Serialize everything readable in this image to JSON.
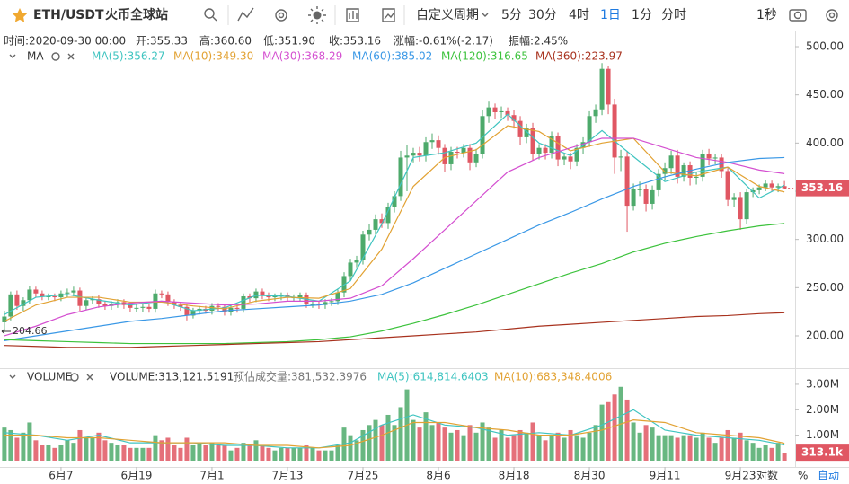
{
  "toolbar": {
    "symbol": "ETH/USDT",
    "exchange": "火币全球站",
    "custom_period": "自定义周期",
    "periods": [
      "5分",
      "30分",
      "4时",
      "1日",
      "1分",
      "分时"
    ],
    "active_period": "1日",
    "interval": "1秒"
  },
  "info": [
    "时间:2020-09-30 00:00",
    "开:355.33",
    "高:360.60",
    "低:351.90",
    "收:353.16",
    "涨幅:-0.61%(-2.17)",
    "振幅:2.45%"
  ],
  "ma_title": "MA",
  "volume_title": "VOLUME",
  "volume_info": [
    "VOLUME:313,121.5191",
    "预估成交量:381,532.3976"
  ],
  "footer": {
    "percent": "%",
    "log": "对数",
    "auto": "自动"
  },
  "chart_data": {
    "type": "candlestick",
    "xlim": [
      -0.7,
      125.7
    ],
    "xticks": [
      {
        "value": 9,
        "label": "6月7"
      },
      {
        "value": 21,
        "label": "6月19"
      },
      {
        "value": 33,
        "label": "7月1"
      },
      {
        "value": 45,
        "label": "7月13"
      },
      {
        "value": 57,
        "label": "7月25"
      },
      {
        "value": 69,
        "label": "8月6"
      },
      {
        "value": 81,
        "label": "8月18"
      },
      {
        "value": 93,
        "label": "8月30"
      },
      {
        "value": 105,
        "label": "9月11"
      },
      {
        "value": 117,
        "label": "9月23"
      }
    ],
    "ylim": [
      168.3,
      511.2
    ],
    "yticks": [
      {
        "value": 200,
        "label": "200.00"
      },
      {
        "value": 250,
        "label": "250.00"
      },
      {
        "value": 300,
        "label": "300.00"
      },
      {
        "value": 350,
        "label": "350.00"
      },
      {
        "value": 400,
        "label": "400.00"
      },
      {
        "value": 450,
        "label": "450.00"
      },
      {
        "value": 500,
        "label": "500.00"
      }
    ],
    "up_color": "#4daa6b",
    "down_color": "#e05763",
    "open": [
      214,
      220,
      243,
      231,
      237,
      248,
      244,
      241,
      241,
      240,
      244,
      245,
      247,
      231,
      237,
      238,
      233,
      231,
      233,
      235,
      232,
      229,
      229,
      230,
      228,
      244,
      243,
      235,
      232,
      230,
      221,
      226,
      228,
      226,
      231,
      230,
      225,
      229,
      228,
      241,
      239,
      246,
      242,
      240,
      241,
      242,
      240,
      240,
      242,
      233,
      233,
      232,
      235,
      236,
      245,
      262,
      276,
      279,
      305,
      310,
      321,
      317,
      334,
      345,
      385,
      387,
      390,
      387,
      401,
      403,
      395,
      378,
      391,
      390,
      395,
      380,
      389,
      428,
      437,
      432,
      433,
      429,
      423,
      406,
      416,
      389,
      395,
      390,
      407,
      383,
      386,
      381,
      395,
      401,
      428,
      435,
      477,
      440,
      385,
      386,
      335,
      352,
      352,
      337,
      351,
      368,
      374,
      387,
      365,
      377,
      364,
      365,
      389,
      384,
      385,
      371,
      341,
      344,
      321,
      349,
      351,
      354,
      358,
      354,
      355.33
    ],
    "high": [
      226,
      246,
      247,
      240,
      252,
      251,
      247,
      244,
      244,
      247,
      249,
      251,
      250,
      240,
      241,
      242,
      236,
      236,
      238,
      238,
      235,
      233,
      233,
      233,
      248,
      247,
      246,
      238,
      235,
      233,
      229,
      231,
      231,
      234,
      234,
      233,
      232,
      232,
      244,
      244,
      249,
      249,
      245,
      244,
      245,
      245,
      243,
      245,
      245,
      236,
      236,
      238,
      239,
      248,
      266,
      280,
      283,
      309,
      316,
      326,
      327,
      338,
      350,
      392,
      398,
      395,
      396,
      406,
      410,
      408,
      399,
      396,
      396,
      399,
      399,
      394,
      434,
      443,
      441,
      438,
      437,
      434,
      428,
      420,
      421,
      399,
      399,
      412,
      411,
      390,
      390,
      399,
      406,
      433,
      440,
      483,
      480,
      446,
      393,
      392,
      358,
      360,
      357,
      356,
      373,
      380,
      392,
      393,
      380,
      381,
      370,
      393,
      394,
      389,
      389,
      374,
      348,
      349,
      352,
      354,
      357,
      362,
      361,
      358,
      360.6
    ],
    "low": [
      204.66,
      216,
      227,
      226,
      233,
      240,
      237,
      237,
      236,
      236,
      240,
      241,
      226,
      227,
      233,
      229,
      227,
      227,
      229,
      228,
      225,
      225,
      225,
      224,
      224,
      239,
      231,
      228,
      226,
      216,
      218,
      222,
      223,
      222,
      226,
      221,
      221,
      224,
      224,
      235,
      235,
      238,
      236,
      236,
      237,
      236,
      236,
      236,
      229,
      229,
      228,
      228,
      231,
      232,
      240,
      257,
      271,
      274,
      299,
      305,
      312,
      311,
      328,
      340,
      350,
      380,
      381,
      381,
      394,
      388,
      370,
      372,
      384,
      385,
      372,
      375,
      384,
      421,
      425,
      426,
      423,
      415,
      398,
      400,
      382,
      383,
      383,
      384,
      376,
      377,
      373,
      376,
      389,
      396,
      421,
      429,
      430,
      368,
      371,
      308,
      330,
      345,
      329,
      331,
      345,
      361,
      368,
      358,
      360,
      356,
      357,
      360,
      377,
      378,
      364,
      335,
      334,
      310,
      316,
      344,
      347,
      350,
      350,
      349,
      351.9
    ],
    "close": [
      220,
      243,
      231,
      237,
      248,
      244,
      241,
      241,
      240,
      244,
      245,
      247,
      231,
      237,
      238,
      233,
      231,
      233,
      235,
      232,
      229,
      229,
      230,
      228,
      244,
      243,
      235,
      232,
      230,
      221,
      226,
      228,
      226,
      231,
      230,
      225,
      229,
      228,
      241,
      239,
      246,
      242,
      240,
      241,
      242,
      240,
      240,
      242,
      233,
      233,
      232,
      235,
      236,
      245,
      262,
      276,
      279,
      305,
      310,
      321,
      317,
      334,
      345,
      385,
      387,
      390,
      387,
      401,
      403,
      395,
      378,
      391,
      390,
      395,
      380,
      389,
      428,
      437,
      432,
      433,
      429,
      423,
      406,
      416,
      389,
      395,
      390,
      407,
      383,
      386,
      381,
      395,
      401,
      428,
      435,
      477,
      440,
      385,
      386,
      335,
      352,
      352,
      337,
      351,
      368,
      374,
      387,
      365,
      377,
      364,
      365,
      389,
      384,
      385,
      371,
      341,
      344,
      321,
      349,
      351,
      354,
      358,
      354,
      355.33,
      353.16
    ],
    "ma_x": [
      0,
      5,
      10,
      15,
      20,
      25,
      30,
      35,
      40,
      45,
      50,
      55,
      60,
      65,
      70,
      75,
      80,
      85,
      90,
      95,
      100,
      105,
      110,
      115,
      120,
      124
    ],
    "ma_series": [
      {
        "name": "MA(5):356.27",
        "color": "#3fc4c0",
        "values": [
          222,
          240,
          243,
          237,
          232,
          236,
          226,
          229,
          242,
          241,
          236,
          257,
          316,
          385,
          390,
          400,
          430,
          400,
          387,
          413,
          386,
          360,
          370,
          375,
          343,
          356.27
        ]
      },
      {
        "name": "MA(10):349.30",
        "color": "#e2a233",
        "values": [
          215,
          232,
          240,
          240,
          235,
          235,
          231,
          228,
          236,
          240,
          239,
          249,
          290,
          355,
          385,
          393,
          418,
          412,
          392,
          400,
          405,
          370,
          366,
          375,
          355,
          349.3
        ]
      },
      {
        "name": "MA(30):368.29",
        "color": "#d44fd0",
        "values": [
          200,
          210,
          222,
          230,
          234,
          236,
          234,
          232,
          233,
          236,
          236,
          239,
          252,
          280,
          310,
          340,
          370,
          385,
          395,
          405,
          405,
          395,
          385,
          380,
          372,
          368.29
        ]
      },
      {
        "name": "MA(60):385.02",
        "color": "#3a98e6",
        "values": [
          195,
          200,
          205,
          210,
          215,
          218,
          222,
          226,
          228,
          230,
          232,
          236,
          243,
          255,
          270,
          285,
          300,
          315,
          328,
          342,
          355,
          365,
          373,
          380,
          384,
          385.02
        ]
      },
      {
        "name": "MA(120):316.65",
        "color": "#3cc23c",
        "values": [
          196,
          195,
          194,
          193,
          192,
          192,
          192,
          192,
          193,
          194,
          196,
          199,
          205,
          213,
          222,
          232,
          243,
          254,
          265,
          275,
          287,
          296,
          303,
          309,
          314,
          316.65
        ]
      },
      {
        "name": "MA(360):223.97",
        "color": "#a8321e",
        "values": [
          190,
          189,
          188,
          188,
          188,
          189,
          190,
          191,
          192,
          193,
          194,
          196,
          198,
          200,
          202,
          204,
          207,
          210,
          212,
          214,
          216,
          218,
          220,
          221,
          223,
          223.97
        ]
      }
    ],
    "volume": {
      "ylim": [
        0,
        3.28
      ],
      "yticks": [
        {
          "value": 1,
          "label": "1.00M"
        },
        {
          "value": 2,
          "label": "2.00M"
        },
        {
          "value": 3,
          "label": "3.00M"
        }
      ],
      "values": [
        1.3,
        1.2,
        0.9,
        1.1,
        1.5,
        0.8,
        0.6,
        0.6,
        0.5,
        0.6,
        0.8,
        0.7,
        1.2,
        0.9,
        0.9,
        1.1,
        0.8,
        0.7,
        0.6,
        0.6,
        0.5,
        0.5,
        0.5,
        0.5,
        1.0,
        0.8,
        0.9,
        0.6,
        0.5,
        0.9,
        0.6,
        0.7,
        0.6,
        0.7,
        0.6,
        0.6,
        0.4,
        0.5,
        0.7,
        0.6,
        0.8,
        0.6,
        0.5,
        0.4,
        0.5,
        0.5,
        0.5,
        0.5,
        0.6,
        0.5,
        0.4,
        0.4,
        0.4,
        0.6,
        1.3,
        1.0,
        0.8,
        1.2,
        1.4,
        1.6,
        1.4,
        1.8,
        1.4,
        2.1,
        2.8,
        1.6,
        1.3,
        1.9,
        1.4,
        1.5,
        1.3,
        1.1,
        1.2,
        1.0,
        1.4,
        1.1,
        1.5,
        1.3,
        0.9,
        1.2,
        0.9,
        1.0,
        1.2,
        1.1,
        1.5,
        1.0,
        0.8,
        1.0,
        1.1,
        0.9,
        1.2,
        1.0,
        0.9,
        1.1,
        1.4,
        2.2,
        2.3,
        2.6,
        2.9,
        2.4,
        1.5,
        1.1,
        1.4,
        1.3,
        1.0,
        1.0,
        1.0,
        0.9,
        1.0,
        1.0,
        0.9,
        1.1,
        0.9,
        0.7,
        0.9,
        1.2,
        0.9,
        1.1,
        0.8,
        0.7,
        0.5,
        0.6,
        0.5,
        0.7,
        0.3131215191
      ],
      "last_value_label": "313.1k",
      "ma_series": [
        {
          "name": "MA(5):614,814.6403",
          "color": "#3fc4c0",
          "values": [
            1.1,
            1.0,
            0.8,
            1.0,
            0.7,
            0.7,
            0.7,
            0.6,
            0.6,
            0.5,
            0.5,
            0.7,
            1.4,
            1.8,
            1.4,
            1.3,
            1.0,
            1.1,
            1.0,
            1.4,
            2.0,
            1.2,
            1.0,
            0.9,
            0.8,
            0.6148146403
          ]
        },
        {
          "name": "MA(10):683,348.4006",
          "color": "#e2a233",
          "values": [
            1.0,
            1.0,
            0.9,
            0.9,
            0.8,
            0.7,
            0.7,
            0.7,
            0.6,
            0.6,
            0.5,
            0.6,
            1.0,
            1.5,
            1.5,
            1.3,
            1.2,
            1.0,
            1.0,
            1.2,
            1.6,
            1.5,
            1.1,
            1.0,
            0.9,
            0.6833484006
          ]
        }
      ]
    }
  }
}
